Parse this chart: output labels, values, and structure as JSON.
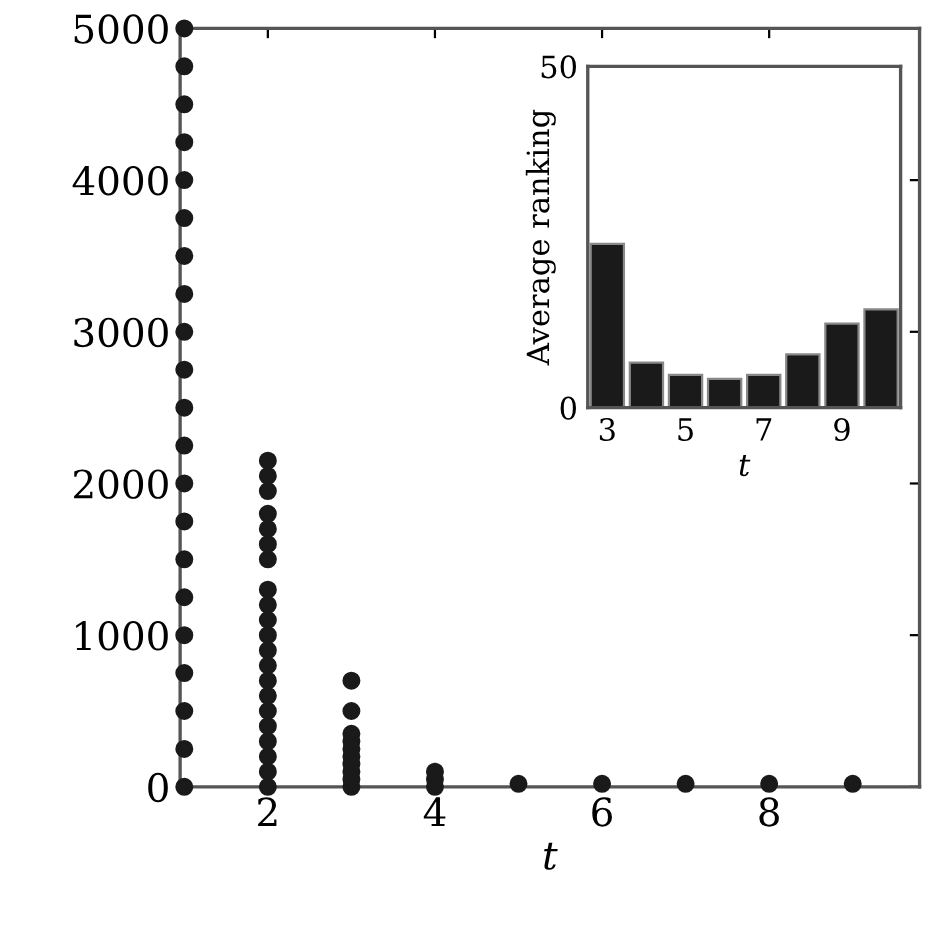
{
  "chart_data": [
    {
      "type": "scatter",
      "xlabel": "t",
      "xlim": [
        0.95,
        9.8
      ],
      "ylim": [
        0,
        5000
      ],
      "xticks": [
        2,
        4,
        6,
        8
      ],
      "yticks": [
        0,
        1000,
        2000,
        3000,
        4000,
        5000
      ],
      "marker": "circle",
      "grid": false,
      "series": [
        {
          "color": "#1a1a1a",
          "x": [
            1,
            1,
            1,
            1,
            1,
            1,
            1,
            1,
            1,
            1,
            1,
            1,
            1,
            1,
            1,
            1,
            1,
            1,
            1,
            1,
            1,
            2,
            2,
            2,
            2,
            2,
            2,
            2,
            2,
            2,
            2,
            2,
            2,
            2,
            2,
            2,
            2,
            2,
            2,
            2,
            2,
            2,
            3,
            3,
            3,
            3,
            3,
            3,
            3,
            3,
            3,
            3,
            4,
            4,
            4,
            5,
            6,
            7,
            8,
            9
          ],
          "values": [
            0,
            250,
            500,
            750,
            1000,
            1250,
            1500,
            1750,
            2000,
            2250,
            2500,
            2750,
            3000,
            3250,
            3500,
            3750,
            4000,
            4250,
            4500,
            4750,
            5000,
            0,
            100,
            200,
            300,
            400,
            500,
            600,
            700,
            800,
            900,
            1000,
            1100,
            1200,
            1300,
            1500,
            1600,
            1700,
            1800,
            1950,
            2050,
            2150,
            0,
            50,
            100,
            150,
            200,
            250,
            300,
            350,
            500,
            700,
            0,
            50,
            100,
            20,
            20,
            20,
            20,
            20
          ]
        }
      ]
    },
    {
      "type": "bar",
      "xlabel": "t",
      "ylabel": "Average ranking",
      "ylim": [
        0,
        50
      ],
      "yticks": [
        0,
        50
      ],
      "categories": [
        "3",
        null,
        "5",
        null,
        "7",
        null,
        "9",
        null
      ],
      "series": [
        {
          "color": "#1a1a1a",
          "values": [
            24,
            6.6,
            4.8,
            4.2,
            4.8,
            7.8,
            12.3,
            14.4
          ]
        }
      ]
    }
  ]
}
